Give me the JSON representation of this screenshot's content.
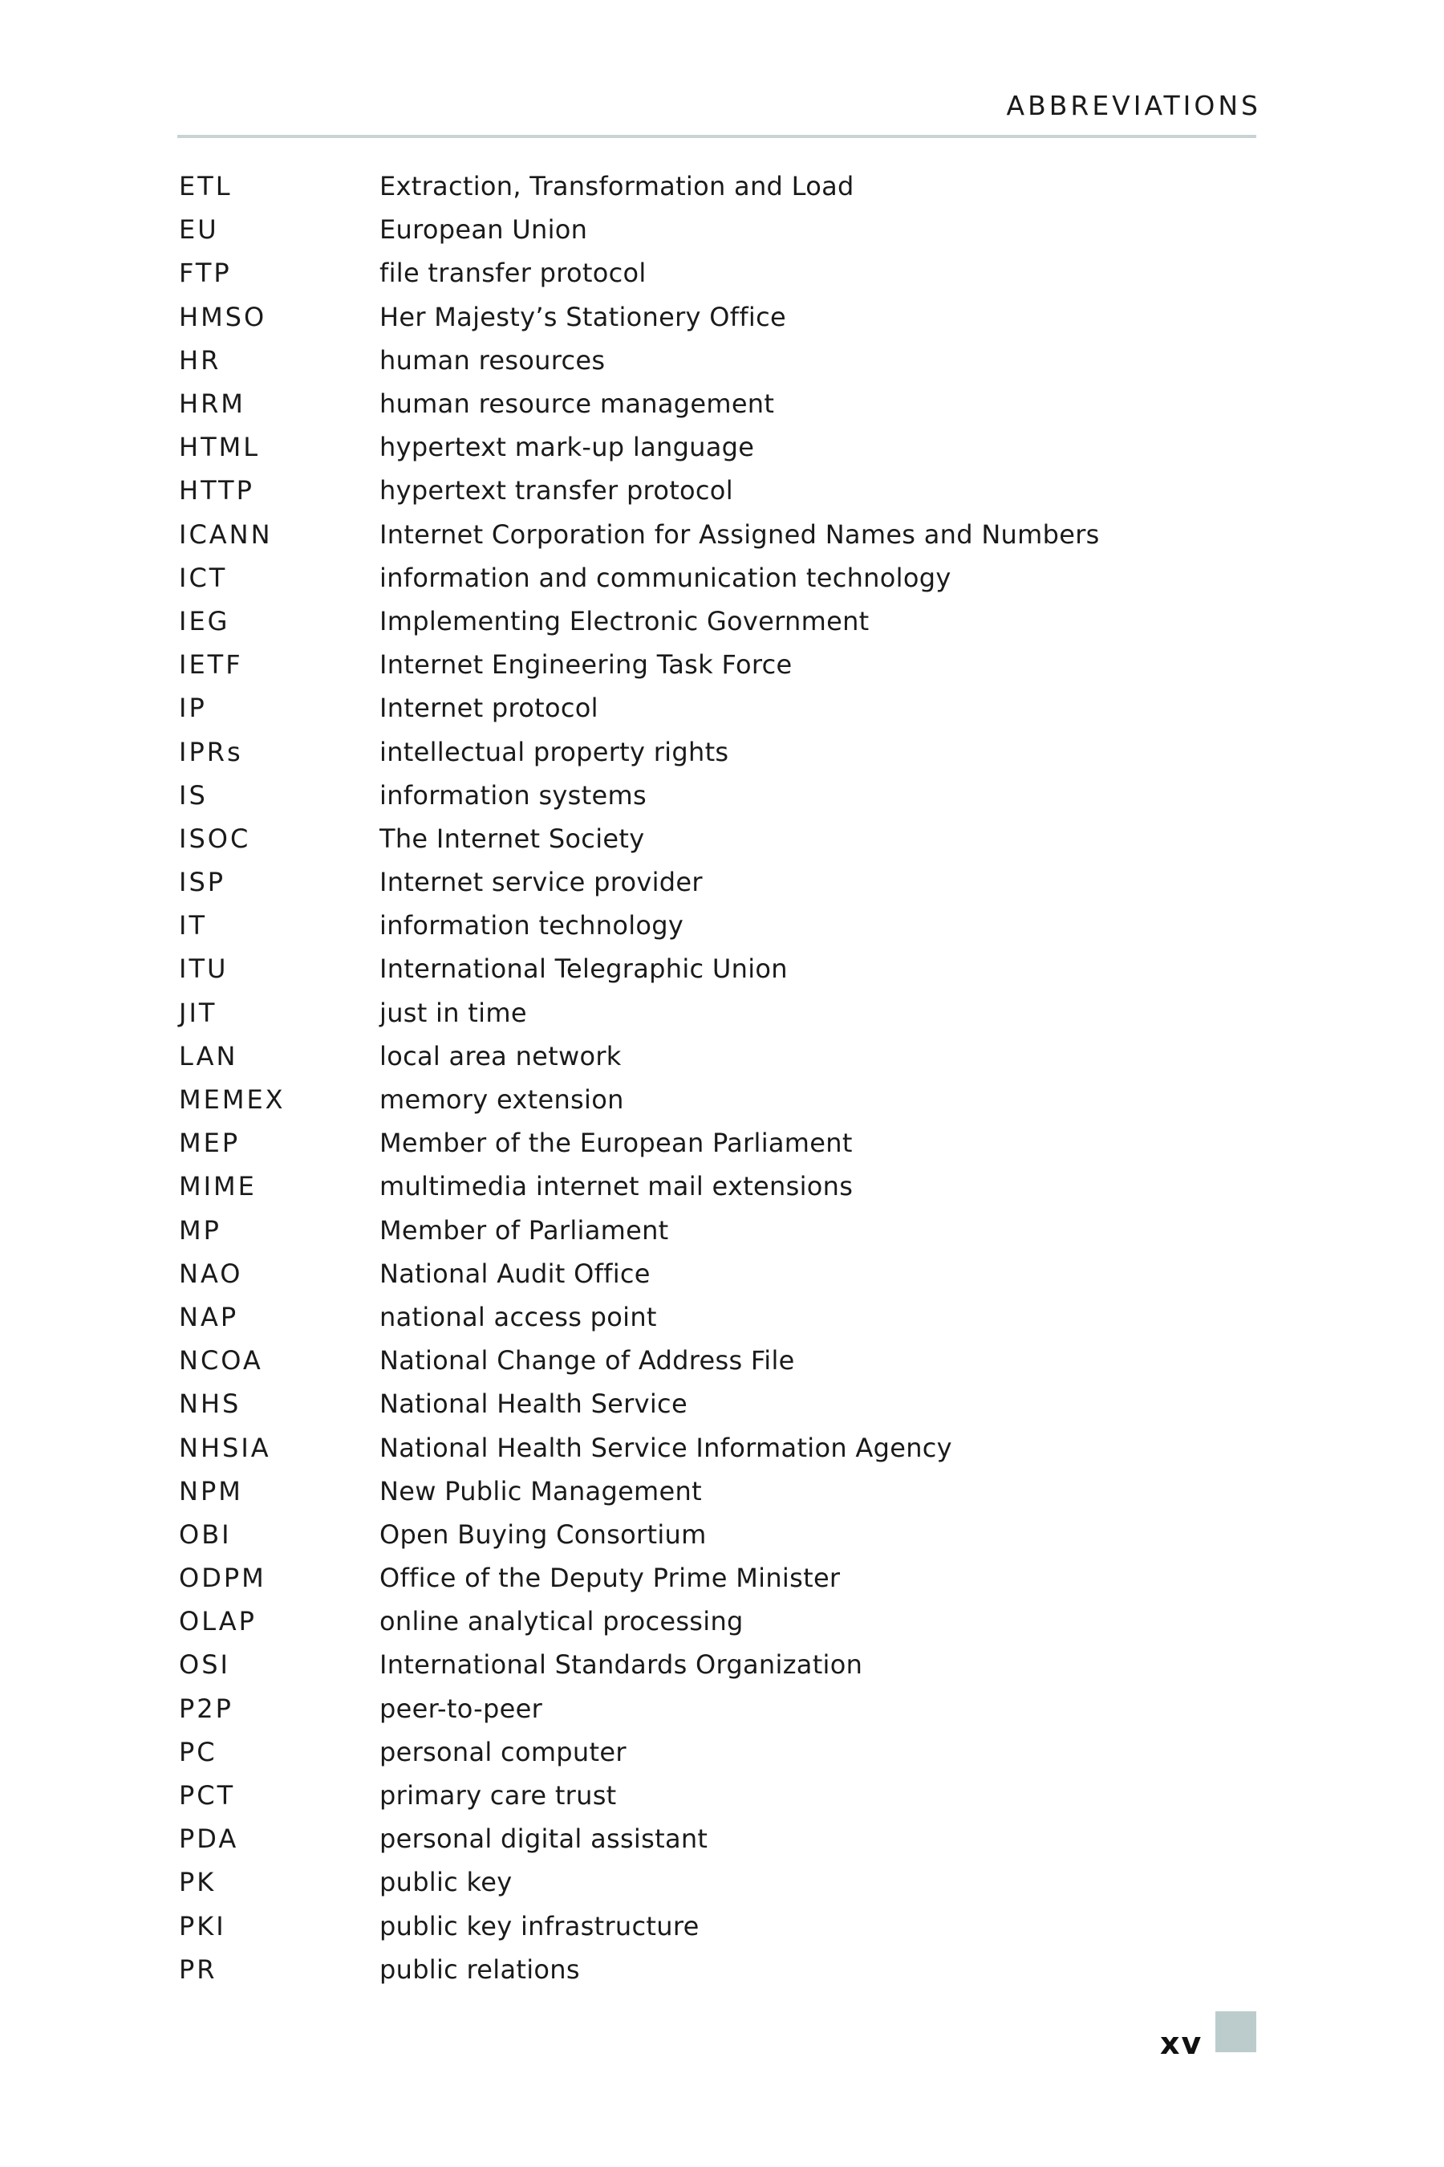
{
  "header": {
    "running_head": "ABBREVIATIONS"
  },
  "entries": [
    {
      "abbr": "ETL",
      "def": "Extraction, Transformation and Load"
    },
    {
      "abbr": "EU",
      "def": "European Union"
    },
    {
      "abbr": "FTP",
      "def": "file transfer protocol"
    },
    {
      "abbr": "HMSO",
      "def": "Her Majesty’s Stationery Office"
    },
    {
      "abbr": "HR",
      "def": "human resources"
    },
    {
      "abbr": "HRM",
      "def": "human resource management"
    },
    {
      "abbr": "HTML",
      "def": "hypertext mark-up language"
    },
    {
      "abbr": "HTTP",
      "def": "hypertext transfer protocol"
    },
    {
      "abbr": "ICANN",
      "def": "Internet Corporation for Assigned Names and Numbers"
    },
    {
      "abbr": "ICT",
      "def": "information and communication technology"
    },
    {
      "abbr": "IEG",
      "def": "Implementing Electronic Government"
    },
    {
      "abbr": "IETF",
      "def": "Internet Engineering Task Force"
    },
    {
      "abbr": "IP",
      "def": "Internet protocol"
    },
    {
      "abbr": "IPRs",
      "def": "intellectual property rights"
    },
    {
      "abbr": "IS",
      "def": "information systems"
    },
    {
      "abbr": "ISOC",
      "def": "The Internet Society"
    },
    {
      "abbr": "ISP",
      "def": "Internet service provider"
    },
    {
      "abbr": "IT",
      "def": "information technology"
    },
    {
      "abbr": "ITU",
      "def": "International Telegraphic Union"
    },
    {
      "abbr": "JIT",
      "def": "just in time"
    },
    {
      "abbr": "LAN",
      "def": "local area network"
    },
    {
      "abbr": "MEMEX",
      "def": "memory extension"
    },
    {
      "abbr": "MEP",
      "def": "Member of the European Parliament"
    },
    {
      "abbr": "MIME",
      "def": "multimedia internet mail extensions"
    },
    {
      "abbr": "MP",
      "def": "Member of Parliament"
    },
    {
      "abbr": "NAO",
      "def": "National Audit Office"
    },
    {
      "abbr": "NAP",
      "def": "national access point"
    },
    {
      "abbr": "NCOA",
      "def": "National Change of Address File"
    },
    {
      "abbr": "NHS",
      "def": "National Health Service"
    },
    {
      "abbr": "NHSIA",
      "def": "National Health Service Information Agency"
    },
    {
      "abbr": "NPM",
      "def": "New Public Management"
    },
    {
      "abbr": "OBI",
      "def": "Open Buying Consortium"
    },
    {
      "abbr": "ODPM",
      "def": "Office of the Deputy Prime Minister"
    },
    {
      "abbr": "OLAP",
      "def": "online analytical processing"
    },
    {
      "abbr": "OSI",
      "def": "International Standards Organization"
    },
    {
      "abbr": "P2P",
      "def": "peer-to-peer"
    },
    {
      "abbr": "PC",
      "def": "personal computer"
    },
    {
      "abbr": "PCT",
      "def": "primary care trust"
    },
    {
      "abbr": "PDA",
      "def": "personal digital assistant"
    },
    {
      "abbr": "PK",
      "def": "public key"
    },
    {
      "abbr": "PKI",
      "def": "public key infrastructure"
    },
    {
      "abbr": "PR",
      "def": "public relations"
    }
  ],
  "footer": {
    "page_number": "xv"
  },
  "colors": {
    "rule": "#c9d3d4",
    "folio_square": "#bccccd",
    "text": "#1a1a1a"
  }
}
